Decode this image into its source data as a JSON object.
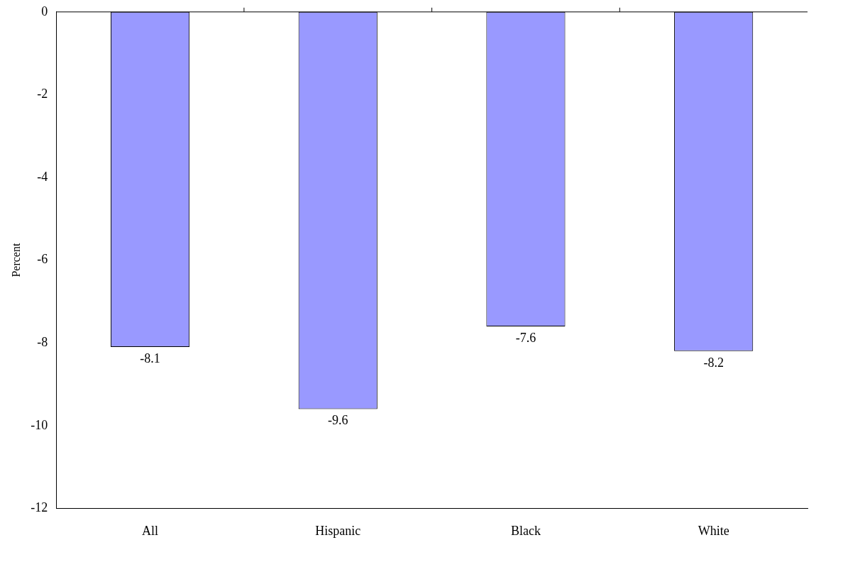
{
  "chart_data": {
    "type": "bar",
    "ylabel": "Percent",
    "categories": [
      "All",
      "Hispanic",
      "Black",
      "White"
    ],
    "values": [
      -8.1,
      -9.6,
      -7.6,
      -8.2
    ],
    "color": "#9999ff",
    "ylim": [
      -12,
      0
    ],
    "yticks": [
      -12,
      -10,
      -8,
      -6,
      -4,
      -2,
      0
    ],
    "grid": false,
    "legend": false,
    "data_labels": true
  }
}
